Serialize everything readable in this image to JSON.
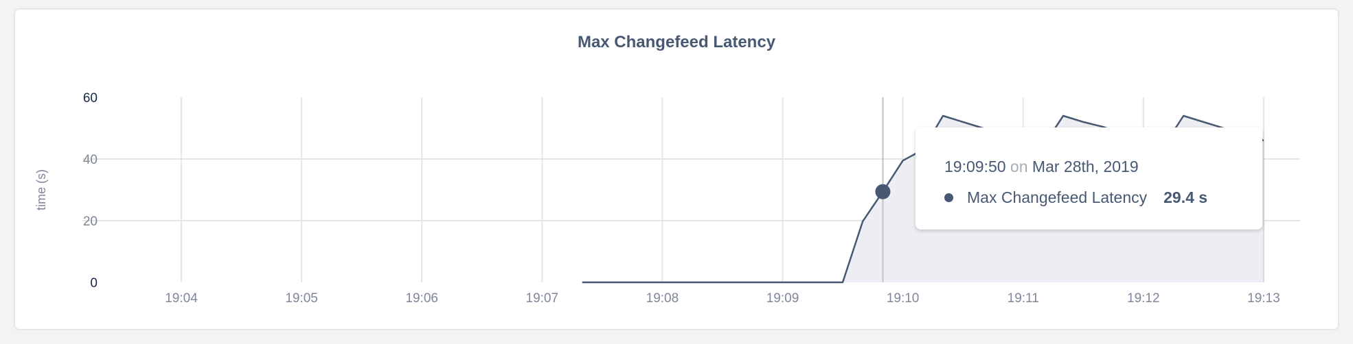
{
  "chart_data": {
    "type": "area",
    "title": "Max Changefeed Latency",
    "ylabel": "time (s)",
    "xlabel": "",
    "ylim": [
      0,
      60
    ],
    "yticks": [
      "0",
      "20",
      "40",
      "60"
    ],
    "xticks": [
      "19:04",
      "19:05",
      "19:06",
      "19:07",
      "19:08",
      "19:09",
      "19:10",
      "19:11",
      "19:12",
      "19:13"
    ],
    "grid": true,
    "series": [
      {
        "name": "Max Changefeed Latency",
        "color": "#475872",
        "fill": "#eceef3",
        "x": [
          "19:07:20",
          "19:07:30",
          "19:07:40",
          "19:07:50",
          "19:08:00",
          "19:08:10",
          "19:08:20",
          "19:08:30",
          "19:08:40",
          "19:08:50",
          "19:09:00",
          "19:09:10",
          "19:09:20",
          "19:09:30",
          "19:09:40",
          "19:09:50",
          "19:10:00",
          "19:10:10",
          "19:10:20",
          "19:10:30",
          "19:10:40",
          "19:10:50",
          "19:11:00",
          "19:11:10",
          "19:11:20",
          "19:11:30",
          "19:11:40",
          "19:11:50",
          "19:12:00",
          "19:12:10",
          "19:12:20",
          "19:12:30",
          "19:12:40",
          "19:12:50",
          "19:13:00"
        ],
        "values": [
          0,
          0,
          0,
          0,
          0,
          0,
          0,
          0,
          0,
          0,
          0,
          0,
          0,
          0,
          19.8,
          29.4,
          39.5,
          43,
          54,
          52,
          50,
          48,
          46,
          44.2,
          54,
          52,
          50.4,
          48,
          46,
          44,
          54,
          52,
          50,
          48,
          46
        ]
      }
    ],
    "hover": {
      "x": "19:09:50",
      "value": 29.4
    }
  },
  "tooltip": {
    "time": "19:09:50",
    "on": "on",
    "date": "Mar 28th, 2019",
    "series_name": "Max Changefeed Latency",
    "value": "29.4 s"
  }
}
